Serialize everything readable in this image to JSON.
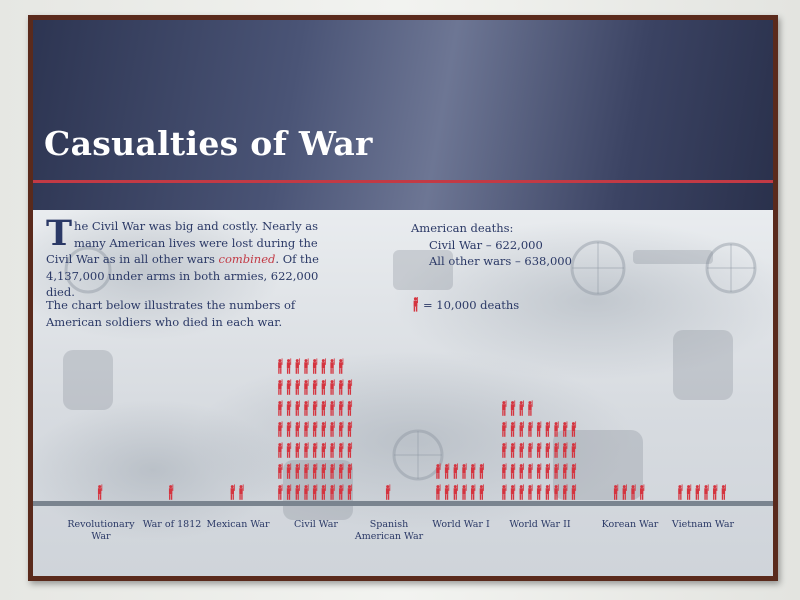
{
  "sign": {
    "title": "Casualties of War",
    "intro_dropcap": "T",
    "intro_text_1": "he Civil War was big and costly. Nearly as many American lives were lost during the Civil War as in all other wars ",
    "intro_emphasis": "combined",
    "intro_text_2": ". Of the 4,137,000 under arms in both armies, 622,000 died.",
    "intro_para_2": "The chart below illustrates the numbers of American soldiers who died in each war.",
    "deaths_heading": "American deaths:",
    "deaths_civil": "Civil War – 622,000",
    "deaths_other": "All other wars – 638,000",
    "legend_text": "= 10,000 deaths"
  },
  "colors": {
    "accent_red": "#c23a45",
    "text_navy": "#2b3966",
    "header_blue": "#3b4363",
    "soldier_red": "#d4343f"
  },
  "chart_data": {
    "type": "bar",
    "unit": "10,000 deaths per figure",
    "categories": [
      "Revolutionary War",
      "War of 1812",
      "Mexican War",
      "Civil War",
      "Spanish American War",
      "World War I",
      "World War II",
      "Korean War",
      "Vietnam War"
    ],
    "values": [
      1,
      1,
      2,
      62,
      1,
      12,
      40,
      4,
      6
    ],
    "columns": [
      1,
      1,
      2,
      9,
      1,
      6,
      9,
      4,
      6
    ],
    "label_lines": [
      [
        "Revolutionary",
        "War"
      ],
      [
        "War of 1812"
      ],
      [
        "Mexican War"
      ],
      [
        "Civil War"
      ],
      [
        "Spanish",
        "American War"
      ],
      [
        "World War I"
      ],
      [
        "World War II"
      ],
      [
        "Korean War"
      ],
      [
        "Vietnam War"
      ]
    ]
  }
}
